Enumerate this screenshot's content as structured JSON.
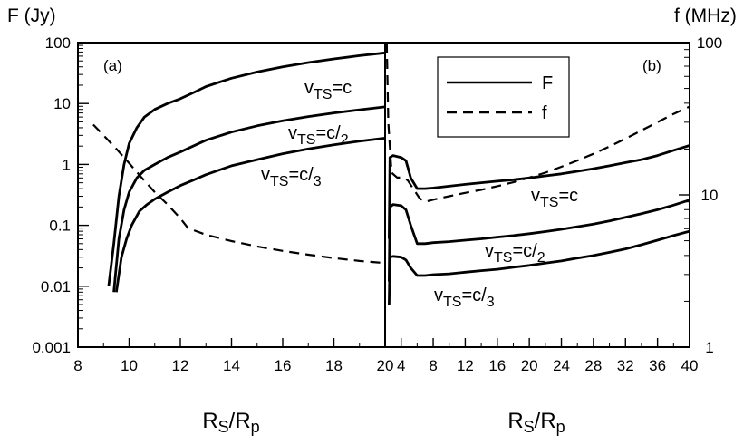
{
  "chart_data": [
    {
      "panel": "(a)",
      "type": "line",
      "ylabel": "F (Jy)",
      "xlabel_parts": [
        "R",
        "S",
        "/R",
        "p"
      ],
      "yscale": "log",
      "xlim": [
        8,
        20
      ],
      "ylim": [
        0.001,
        100
      ],
      "xticks": [
        8,
        10,
        12,
        14,
        16,
        18,
        20
      ],
      "yticks": [
        0.001,
        0.01,
        0.1,
        1,
        10,
        100
      ],
      "ytick_labels": [
        "0.001",
        "0.01",
        "0.1",
        "1",
        "10",
        "100"
      ],
      "series": [
        {
          "style": "solid",
          "label_parts": [
            "v",
            "TS",
            "=c",
            ""
          ],
          "x": [
            9.2,
            9.4,
            9.6,
            9.8,
            10.0,
            10.3,
            10.6,
            11.0,
            11.5,
            12.0,
            12.5,
            13.0,
            14.0,
            15.0,
            16.0,
            17.0,
            18.0,
            19.0,
            20.0
          ],
          "y": [
            0.01,
            0.05,
            0.3,
            1.0,
            2.2,
            4.0,
            6.0,
            8.0,
            10.0,
            12.0,
            15.0,
            19.0,
            26.0,
            33.0,
            40.0,
            47.0,
            54.0,
            61.0,
            68.0
          ]
        },
        {
          "style": "solid",
          "label_parts": [
            "v",
            "TS",
            "=c/",
            "2"
          ],
          "x": [
            9.4,
            9.6,
            9.8,
            10.0,
            10.3,
            10.6,
            11.0,
            11.5,
            12.0,
            12.5,
            13.0,
            14.0,
            15.0,
            16.0,
            17.0,
            18.0,
            19.0,
            20.0
          ],
          "y": [
            0.008,
            0.06,
            0.18,
            0.35,
            0.6,
            0.8,
            1.0,
            1.3,
            1.6,
            2.0,
            2.5,
            3.4,
            4.3,
            5.2,
            6.1,
            7.0,
            7.9,
            8.8
          ]
        },
        {
          "style": "solid",
          "label_parts": [
            "v",
            "TS",
            "=c/",
            "3"
          ],
          "x": [
            9.5,
            9.7,
            9.9,
            10.1,
            10.4,
            10.7,
            11.0,
            11.5,
            12.0,
            12.5,
            13.0,
            14.0,
            15.0,
            16.0,
            17.0,
            18.0,
            19.0,
            20.0
          ],
          "y": [
            0.008,
            0.03,
            0.06,
            0.1,
            0.17,
            0.22,
            0.27,
            0.35,
            0.45,
            0.55,
            0.68,
            0.95,
            1.2,
            1.5,
            1.8,
            2.1,
            2.4,
            2.7
          ]
        },
        {
          "style": "dashed",
          "label_parts": [
            "",
            "",
            "",
            ""
          ],
          "x": [
            8.6,
            9.0,
            9.5,
            10.0,
            10.5,
            11.0,
            11.5,
            12.0,
            12.3,
            13.0,
            14.0,
            15.0,
            16.0,
            17.0,
            18.0,
            19.0,
            20.0
          ],
          "y": [
            4.5,
            3.0,
            1.8,
            1.05,
            0.6,
            0.35,
            0.22,
            0.13,
            0.09,
            0.07,
            0.055,
            0.045,
            0.038,
            0.033,
            0.029,
            0.026,
            0.024
          ]
        }
      ]
    },
    {
      "panel": "(b)",
      "type": "line",
      "ylabel": "f (MHz)",
      "xlabel_parts": [
        "R",
        "S",
        "/R",
        "p"
      ],
      "yscale": "log",
      "xlim": [
        2,
        40
      ],
      "ylim": [
        0.001,
        100
      ],
      "right_ylim": [
        1,
        100
      ],
      "xticks": [
        4,
        8,
        12,
        16,
        20,
        24,
        28,
        32,
        36,
        40
      ],
      "right_yticks": [
        1,
        10,
        100
      ],
      "right_ytick_labels": [
        "1",
        "10",
        "100"
      ],
      "legend": {
        "position": "top-center",
        "entries": [
          {
            "label": "F",
            "style": "solid"
          },
          {
            "label": "f",
            "style": "dashed"
          }
        ]
      },
      "series": [
        {
          "style": "solid",
          "axis": "left",
          "label_parts": [
            "v",
            "TS",
            "=c",
            ""
          ],
          "x": [
            2.5,
            2.6,
            3.0,
            4.0,
            4.6,
            5.2,
            6.0,
            7.0,
            8.0,
            10,
            12,
            14,
            16,
            18,
            20,
            22,
            24,
            26,
            28,
            30,
            32,
            34,
            36,
            38,
            40
          ],
          "y": [
            0.06,
            1.3,
            1.4,
            1.3,
            1.15,
            0.6,
            0.4,
            0.4,
            0.41,
            0.44,
            0.47,
            0.5,
            0.53,
            0.56,
            0.6,
            0.65,
            0.7,
            0.77,
            0.85,
            0.95,
            1.07,
            1.2,
            1.4,
            1.7,
            2.05
          ]
        },
        {
          "style": "solid",
          "axis": "left",
          "label_parts": [
            "v",
            "TS",
            "=c/",
            "2"
          ],
          "x": [
            2.5,
            2.6,
            3.0,
            4.0,
            4.6,
            5.2,
            6.0,
            7.0,
            8.0,
            10,
            12,
            14,
            16,
            18,
            20,
            22,
            24,
            26,
            28,
            30,
            32,
            34,
            36,
            38,
            40
          ],
          "y": [
            0.012,
            0.2,
            0.22,
            0.21,
            0.18,
            0.1,
            0.05,
            0.05,
            0.052,
            0.054,
            0.057,
            0.06,
            0.064,
            0.068,
            0.073,
            0.079,
            0.086,
            0.095,
            0.105,
            0.118,
            0.135,
            0.155,
            0.18,
            0.215,
            0.26
          ]
        },
        {
          "style": "solid",
          "axis": "left",
          "label_parts": [
            "v",
            "TS",
            "=c/",
            "3"
          ],
          "x": [
            2.5,
            2.6,
            3.0,
            4.0,
            4.6,
            5.2,
            6.0,
            7.0,
            8.0,
            10,
            12,
            14,
            16,
            18,
            20,
            22,
            24,
            26,
            28,
            30,
            32,
            34,
            36,
            38,
            40
          ],
          "y": [
            0.005,
            0.03,
            0.031,
            0.03,
            0.027,
            0.02,
            0.015,
            0.015,
            0.0155,
            0.016,
            0.017,
            0.018,
            0.019,
            0.0205,
            0.022,
            0.024,
            0.026,
            0.029,
            0.032,
            0.036,
            0.041,
            0.048,
            0.057,
            0.068,
            0.08
          ]
        },
        {
          "style": "dashed",
          "axis": "right",
          "label_parts": [
            "",
            "",
            "",
            ""
          ],
          "x": [
            2.2,
            2.4,
            2.8,
            3.5,
            4.0,
            4.8,
            5.5,
            6.3,
            7.0,
            8.0,
            10,
            12,
            14,
            16,
            18,
            20,
            22,
            24,
            26,
            28,
            30,
            32,
            34,
            36,
            38,
            40
          ],
          "y": [
            100,
            30,
            14,
            13,
            13,
            12.5,
            11,
            9.5,
            9,
            9.3,
            9.8,
            10.3,
            10.8,
            11.4,
            12.1,
            13,
            14,
            15.3,
            16.8,
            18.6,
            20.8,
            23.4,
            26.5,
            30,
            34,
            38
          ]
        }
      ]
    }
  ]
}
